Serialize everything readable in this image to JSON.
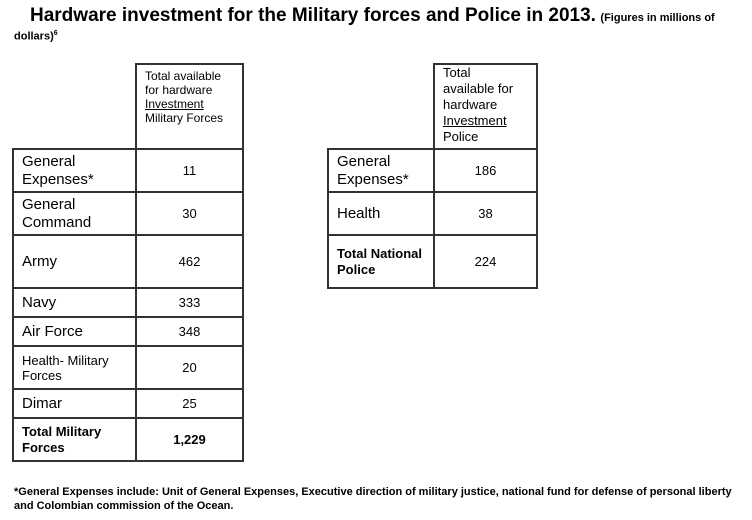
{
  "title": {
    "main": "Hardware investment for the Military forces and Police in 2013.",
    "note_part1": "(Figures in millions of",
    "note_part2": "dollars)",
    "footnote_mark": "6"
  },
  "military_table": {
    "header": {
      "line1": "Total available",
      "line2": "for hardware",
      "line3": "Investment",
      "line4": "Military Forces"
    },
    "rows": [
      {
        "label": "General Expenses*",
        "value": "11"
      },
      {
        "label": "General Command",
        "value": "30"
      },
      {
        "label": "Army",
        "value": "462"
      },
      {
        "label": "Navy",
        "value": "333"
      },
      {
        "label": "Air Force",
        "value": "348"
      },
      {
        "label": "Health- Military Forces",
        "value": "20"
      },
      {
        "label": "Dimar",
        "value": "25"
      },
      {
        "label": "Total Military Forces",
        "value": "1,229"
      }
    ]
  },
  "police_table": {
    "header": {
      "line1": "Total",
      "line2": "available for",
      "line3": "hardware",
      "line4": "Investment",
      "line5": "Police"
    },
    "rows": [
      {
        "label": "General Expenses*",
        "value": "186"
      },
      {
        "label": "Health",
        "value": "38"
      },
      {
        "label": "Total National Police",
        "value": "224"
      }
    ]
  },
  "footnote": "*General Expenses include: Unit of General Expenses, Executive direction of military justice, national fund for defense of personal liberty and Colombian commission of the Ocean."
}
